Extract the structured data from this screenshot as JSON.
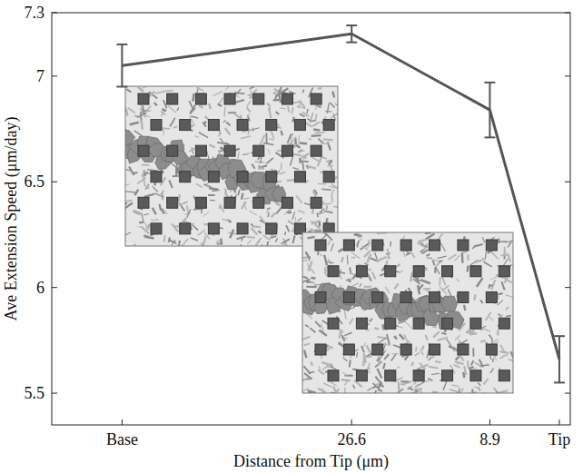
{
  "chart_data": {
    "type": "line",
    "x_label": "Distance from Tip (μm)",
    "y_label": "Ave Extension Speed (μm/day)",
    "x": [
      56,
      26.6,
      8.9,
      0
    ],
    "values": [
      7.05,
      7.2,
      6.84,
      5.66
    ],
    "errors": [
      0.1,
      0.04,
      0.13,
      0.11
    ],
    "xlim": [
      65,
      -1.4
    ],
    "ylim": [
      5.35,
      7.3
    ],
    "xticks": [
      {
        "value": 56,
        "label": "Base"
      },
      26.6,
      8.9,
      {
        "value": 0,
        "label": "Tip"
      }
    ],
    "yticks": [
      5.5,
      6,
      6.5,
      7,
      7.3
    ],
    "color": "#555555"
  }
}
